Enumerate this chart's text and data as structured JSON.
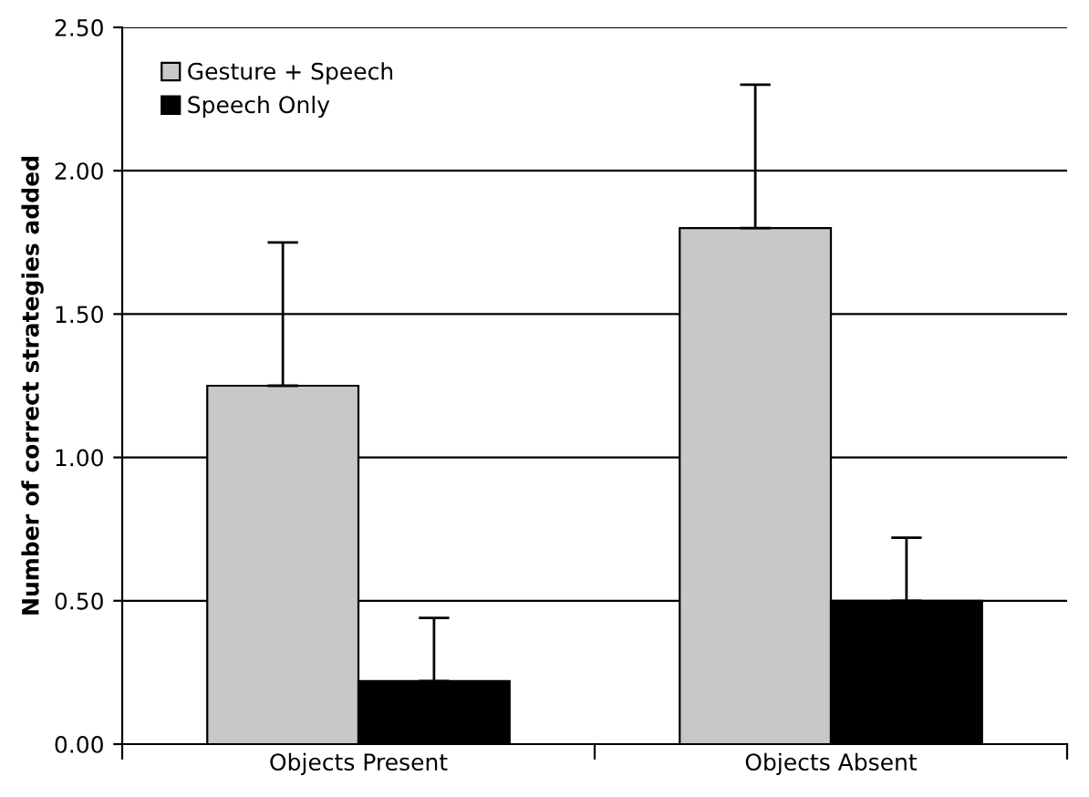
{
  "chart_data": {
    "type": "bar",
    "ylabel": "Number of correct strategies added",
    "categories": [
      "Objects Present",
      "Objects Absent"
    ],
    "series": [
      {
        "name": "Gesture + Speech",
        "color": "#c8c8c8",
        "values": [
          1.25,
          1.8
        ],
        "errors": [
          [
            1.25,
            1.75
          ],
          [
            1.8,
            2.3
          ]
        ]
      },
      {
        "name": "Speech Only",
        "color": "#000000",
        "values": [
          0.22,
          0.5
        ],
        "errors": [
          [
            0.22,
            0.44
          ],
          [
            0.5,
            0.72
          ]
        ]
      }
    ],
    "ylim": [
      0,
      2.5
    ],
    "yticks": [
      {
        "value": 0,
        "label": "0.00"
      },
      {
        "value": 0.5,
        "label": "0.50"
      },
      {
        "value": 1,
        "label": "1.00"
      },
      {
        "value": 1.5,
        "label": "1.50"
      },
      {
        "value": 2,
        "label": "2.00"
      },
      {
        "value": 2.5,
        "label": "2.50"
      }
    ],
    "grid": "y",
    "legend": "top left"
  }
}
